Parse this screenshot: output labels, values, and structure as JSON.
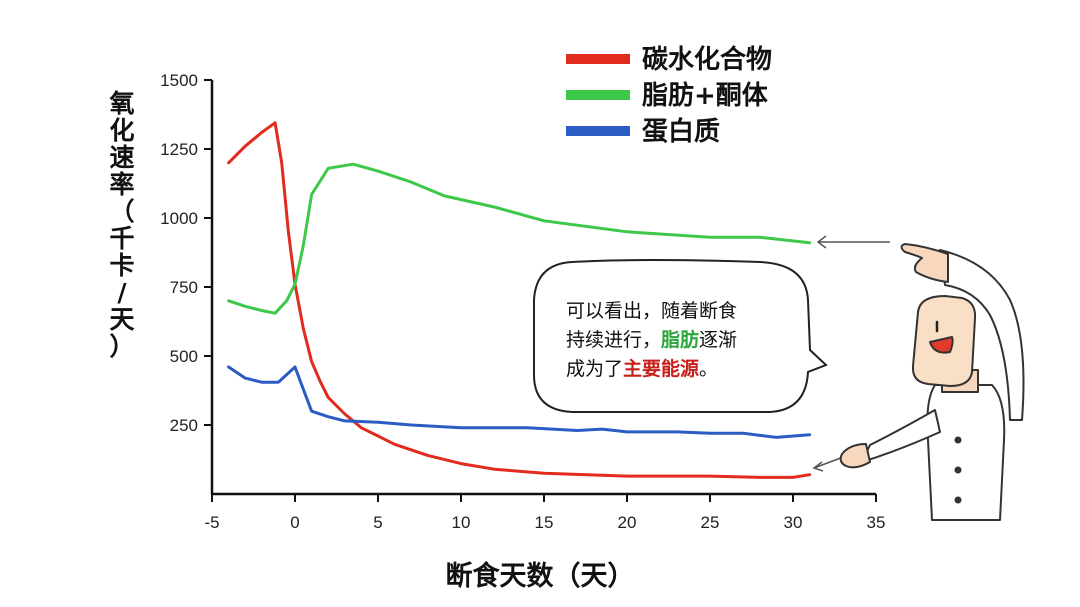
{
  "chart_data": {
    "type": "line",
    "xlabel": "断食天数（天）",
    "ylabel": "氧化速率（千卡/天）",
    "xlim": [
      -5,
      35
    ],
    "ylim": [
      0,
      1500
    ],
    "xticks": [
      -5,
      0,
      5,
      10,
      15,
      20,
      25,
      30,
      35
    ],
    "yticks": [
      250,
      500,
      750,
      1000,
      1250,
      1500
    ],
    "grid": false,
    "legend_position": "top-right",
    "series": [
      {
        "name": "碳水化合物",
        "color": "#e02b1e",
        "x": [
          -4,
          -3,
          -2,
          -1.2,
          -0.8,
          -0.4,
          0,
          0.5,
          1,
          1.5,
          2,
          3,
          4,
          5,
          6,
          8,
          10,
          12,
          15,
          20,
          25,
          28,
          30,
          31
        ],
        "y": [
          1200,
          1260,
          1310,
          1345,
          1200,
          950,
          760,
          600,
          480,
          410,
          350,
          290,
          240,
          210,
          180,
          140,
          110,
          90,
          75,
          65,
          65,
          60,
          60,
          70
        ]
      },
      {
        "name": "脂肪+酮体",
        "color": "#3ec84a",
        "x": [
          -4,
          -3,
          -2,
          -1.2,
          -0.5,
          0,
          0.5,
          1,
          2,
          3.5,
          5,
          7,
          9,
          12,
          15,
          20,
          25,
          28,
          31
        ],
        "y": [
          700,
          680,
          665,
          655,
          700,
          760,
          900,
          1085,
          1180,
          1195,
          1170,
          1130,
          1080,
          1040,
          990,
          950,
          930,
          930,
          910
        ]
      },
      {
        "name": "蛋白质",
        "color": "#2a5cc4",
        "x": [
          -4,
          -3,
          -2,
          -1,
          0,
          0.5,
          1,
          2,
          3,
          5,
          7,
          10,
          14,
          17,
          18.5,
          20,
          23,
          25,
          27,
          29,
          31
        ],
        "y": [
          460,
          420,
          405,
          405,
          460,
          380,
          300,
          280,
          265,
          260,
          250,
          240,
          240,
          230,
          235,
          225,
          225,
          220,
          220,
          205,
          215
        ]
      }
    ],
    "annotation": {
      "text_line1": "可以看出，随着断食",
      "text_line2a": "持续进行，",
      "text_line2b": "脂肪",
      "text_line2c": "逐渐",
      "text_line3a": "成为了",
      "text_line3b": "主要能源",
      "text_line3c": "。",
      "highlight_green": "#2aa63a",
      "highlight_red": "#c8201a"
    }
  }
}
